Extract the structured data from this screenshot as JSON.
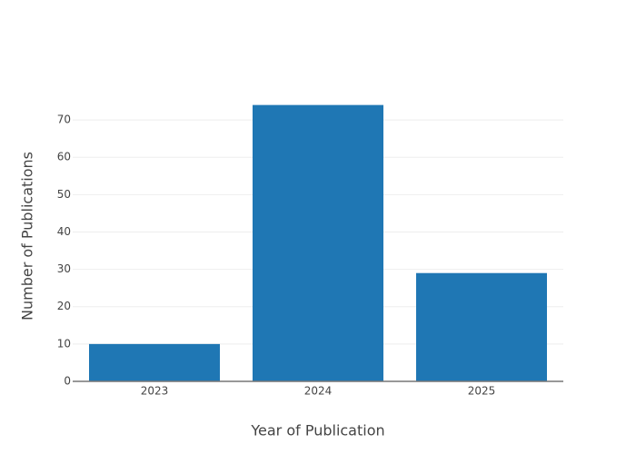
{
  "chart_data": {
    "type": "bar",
    "x_label": "Year of Publication",
    "y_label": "Number of Publications",
    "categories": [
      "2023",
      "2024",
      "2025"
    ],
    "values": [
      10,
      74,
      29
    ],
    "color": "#1f77b4",
    "ylim": [
      0,
      77.8
    ],
    "yticks": [
      0,
      10,
      20,
      30,
      40,
      50,
      60,
      70
    ],
    "grid": true
  }
}
